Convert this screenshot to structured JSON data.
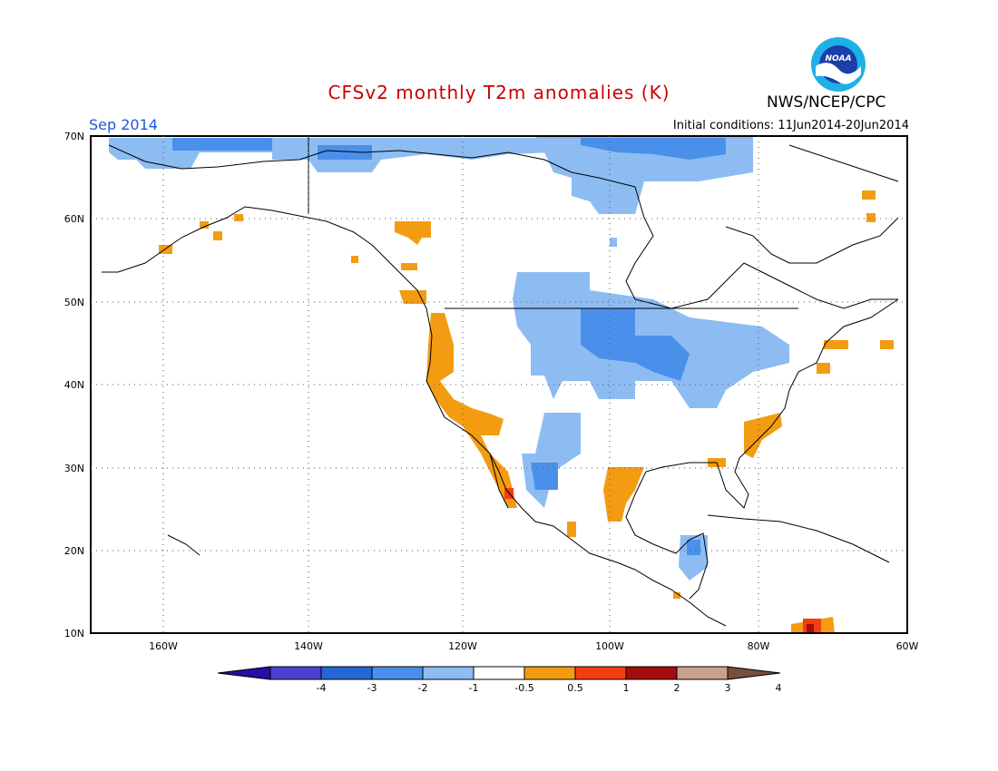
{
  "title": "CFSv2 monthly T2m anomalies (K)",
  "agency": "NWS/NCEP/CPC",
  "logo_text": "NOAA",
  "month": "Sep 2014",
  "initial_conditions": "Initial conditions: 11Jun2014-20Jun2014",
  "lat_labels": [
    "70N",
    "60N",
    "50N",
    "40N",
    "30N",
    "20N",
    "10N"
  ],
  "lon_labels": [
    "160W",
    "140W",
    "120W",
    "100W",
    "80W",
    "60W"
  ],
  "colorbar": {
    "labels": [
      "-4",
      "-3",
      "-2",
      "-1",
      "-0.5",
      "0.5",
      "1",
      "2",
      "3",
      "4"
    ],
    "colors": [
      "#2a0da8",
      "#4d3fd0",
      "#2468d6",
      "#4a90ea",
      "#8cbcf2",
      "#ffffff",
      "#f39c12",
      "#f33f0f",
      "#a30d0d",
      "#c9a08e",
      "#7a4e3c"
    ]
  },
  "colors": {
    "title": "#cc0000",
    "month": "#2255dd"
  }
}
